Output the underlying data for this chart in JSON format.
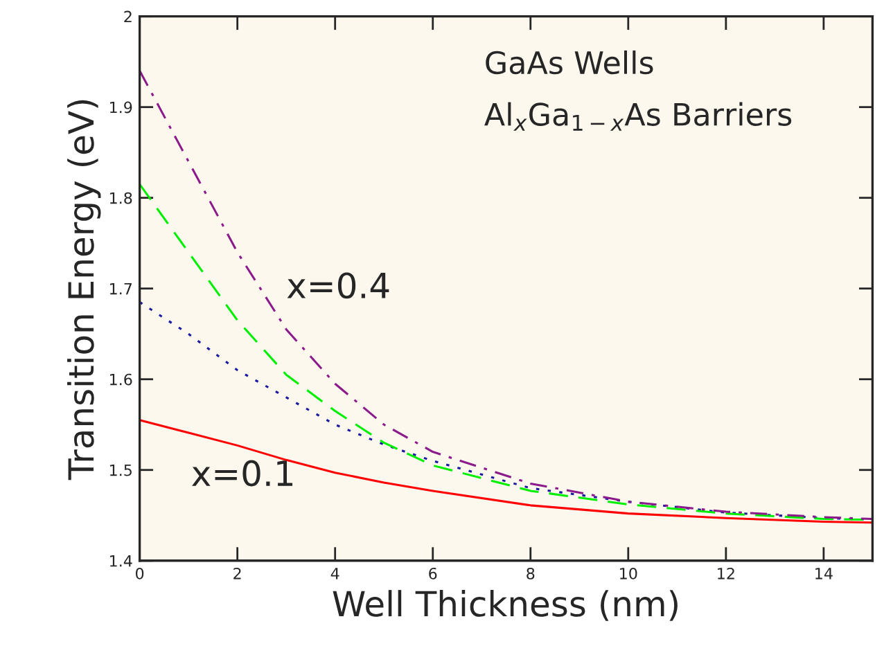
{
  "chart_data": {
    "type": "line",
    "xlabel": "Well Thickness (nm)",
    "ylabel": "Transition Energy (eV)",
    "x": [
      0,
      1,
      2,
      3,
      4,
      5,
      6,
      8,
      10,
      12,
      14,
      15
    ],
    "series": [
      {
        "color": "#ff0000",
        "line_style": "solid",
        "values": [
          1.555,
          1.541,
          1.527,
          1.511,
          1.497,
          1.486,
          1.477,
          1.461,
          1.452,
          1.447,
          1.443,
          1.442
        ]
      },
      {
        "color": "#1a1aa0",
        "line_style": "dotted",
        "values": [
          1.685,
          1.65,
          1.61,
          1.58,
          1.55,
          1.528,
          1.51,
          1.48,
          1.465,
          1.453,
          1.447,
          1.445
        ]
      },
      {
        "color": "#00ee00",
        "line_style": "dashed",
        "values": [
          1.815,
          1.74,
          1.665,
          1.605,
          1.565,
          1.53,
          1.505,
          1.477,
          1.462,
          1.452,
          1.446,
          1.445
        ]
      },
      {
        "color": "#8b1a8b",
        "line_style": "dashdot",
        "values": [
          1.94,
          1.84,
          1.74,
          1.655,
          1.595,
          1.55,
          1.52,
          1.485,
          1.465,
          1.454,
          1.448,
          1.446
        ]
      }
    ],
    "annotations": [
      "x=0.4",
      "x=0.1",
      "GaAs Wells",
      "Al$_{x}$Ga$_{1−x}$As Barriers"
    ],
    "xlim": [
      0,
      15
    ],
    "ylim": [
      1.4,
      2
    ],
    "xticks": [
      0,
      2,
      4,
      6,
      8,
      10,
      12,
      14
    ],
    "yticks": [
      1.4,
      1.5,
      1.6,
      1.7,
      1.8,
      1.9,
      2
    ],
    "grid": false,
    "legend": false,
    "marker": "none"
  }
}
